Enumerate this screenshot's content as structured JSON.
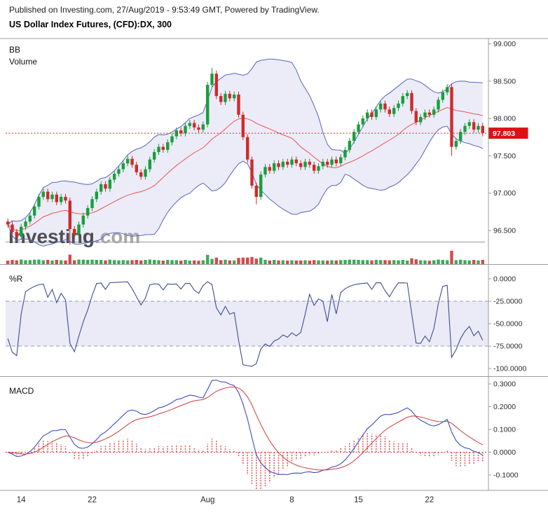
{
  "header": {
    "published_line": "Published on Investing.com, 27/Aug/2019 - 9:53:49 GMT, Powered by TradingView.",
    "symbol_title": "US Dollar Index Futures, (CFD):DX, 300"
  },
  "legends": {
    "main_bb": "BB",
    "main_volume": "Volume",
    "wpr": "%R",
    "macd": "MACD"
  },
  "watermark": {
    "bold": "Investing",
    "light": ".com"
  },
  "colors": {
    "up": "#1a9e3c",
    "down": "#d02a2a",
    "bb_fill": "rgba(101,110,199,0.13)",
    "bb_outer": "#5a64c0",
    "bb_mid": "#ef5350",
    "last_price_bg": "#dd1016",
    "last_price_line": "#e02020",
    "wpr_line": "#3f4c94",
    "wpr_band_fill": "rgba(109,116,190,0.14)",
    "wpr_dash": "#9097bd",
    "macd_line": "#3d4db7",
    "macd_signal": "#d23b3b",
    "macd_hist": "#e05c5c",
    "axis_text": "#2a2a2a",
    "separator": "#9d9d9d",
    "watermark_main": "#4f4f4f",
    "watermark_light": "#a7a7a7",
    "watermark_line": "#b5b5b5"
  },
  "time_axis": {
    "labels": [
      "14",
      "22",
      "Aug",
      "8",
      "15",
      "22"
    ],
    "bar_positions": [
      3,
      19,
      45,
      64,
      79,
      95
    ]
  },
  "chart_data": [
    {
      "type": "candlestick",
      "title": "US Dollar Index Futures, (CFD):DX, 300",
      "interval": "300",
      "overlays": [
        "BB",
        "Volume"
      ],
      "ylim": [
        96.05,
        99.07
      ],
      "yticks": [
        99.0,
        98.5,
        98.0,
        97.5,
        97.0,
        96.5
      ],
      "ytick_labels": [
        "99.000",
        "98.500",
        "98.000",
        "97.500",
        "97.000",
        "96.500"
      ],
      "last_price": 97.803,
      "last_price_label": "97.803",
      "candles": [
        [
          96.62,
          96.66,
          96.54,
          96.58
        ],
        [
          96.58,
          96.62,
          96.44,
          96.48
        ],
        [
          96.48,
          96.52,
          96.38,
          96.42
        ],
        [
          96.42,
          96.59,
          96.38,
          96.55
        ],
        [
          96.55,
          96.66,
          96.51,
          96.62
        ],
        [
          96.62,
          96.74,
          96.58,
          96.7
        ],
        [
          96.7,
          96.86,
          96.66,
          96.82
        ],
        [
          96.82,
          96.99,
          96.78,
          96.95
        ],
        [
          96.95,
          97.06,
          96.91,
          97.02
        ],
        [
          97.02,
          97.06,
          96.88,
          96.92
        ],
        [
          96.92,
          97.02,
          96.88,
          96.98
        ],
        [
          96.98,
          97.02,
          96.84,
          96.88
        ],
        [
          96.88,
          96.99,
          96.84,
          96.95
        ],
        [
          96.95,
          96.99,
          96.86,
          96.9
        ],
        [
          96.9,
          96.94,
          96.31,
          96.52
        ],
        [
          96.52,
          96.56,
          96.41,
          96.45
        ],
        [
          96.45,
          96.62,
          96.41,
          96.58
        ],
        [
          96.58,
          96.74,
          96.54,
          96.7
        ],
        [
          96.7,
          96.84,
          96.66,
          96.8
        ],
        [
          96.8,
          96.96,
          96.76,
          96.92
        ],
        [
          96.92,
          97.06,
          96.88,
          97.02
        ],
        [
          97.02,
          97.16,
          96.98,
          97.12
        ],
        [
          97.12,
          97.16,
          97.02,
          97.06
        ],
        [
          97.06,
          97.22,
          97.02,
          97.18
        ],
        [
          97.18,
          97.3,
          97.14,
          97.26
        ],
        [
          97.26,
          97.36,
          97.22,
          97.32
        ],
        [
          97.32,
          97.44,
          97.28,
          97.4
        ],
        [
          97.4,
          97.5,
          97.36,
          97.46
        ],
        [
          97.46,
          97.5,
          97.34,
          97.38
        ],
        [
          97.38,
          97.42,
          97.24,
          97.28
        ],
        [
          97.28,
          97.32,
          97.18,
          97.22
        ],
        [
          97.22,
          97.36,
          97.18,
          97.32
        ],
        [
          97.32,
          97.49,
          97.28,
          97.45
        ],
        [
          97.45,
          97.59,
          97.41,
          97.55
        ],
        [
          97.55,
          97.66,
          97.51,
          97.62
        ],
        [
          97.62,
          97.66,
          97.54,
          97.58
        ],
        [
          97.58,
          97.72,
          97.54,
          97.68
        ],
        [
          97.68,
          97.8,
          97.64,
          97.76
        ],
        [
          97.76,
          97.88,
          97.72,
          97.84
        ],
        [
          97.84,
          97.88,
          97.76,
          97.8
        ],
        [
          97.8,
          97.94,
          97.76,
          97.9
        ],
        [
          97.9,
          97.98,
          97.86,
          97.94
        ],
        [
          97.94,
          97.98,
          97.84,
          97.88
        ],
        [
          97.88,
          97.92,
          97.81,
          97.85
        ],
        [
          97.85,
          97.96,
          97.81,
          97.92
        ],
        [
          97.92,
          98.49,
          97.88,
          98.45
        ],
        [
          98.45,
          98.68,
          98.41,
          98.6
        ],
        [
          98.6,
          98.64,
          98.26,
          98.3
        ],
        [
          98.3,
          98.34,
          98.18,
          98.22
        ],
        [
          98.22,
          98.37,
          98.18,
          98.33
        ],
        [
          98.33,
          98.37,
          98.23,
          98.27
        ],
        [
          98.27,
          98.36,
          98.23,
          98.32
        ],
        [
          98.32,
          98.36,
          98.01,
          98.05
        ],
        [
          98.05,
          98.09,
          97.71,
          97.75
        ],
        [
          97.75,
          97.79,
          97.41,
          97.45
        ],
        [
          97.45,
          97.49,
          97.06,
          97.1
        ],
        [
          97.1,
          97.14,
          96.85,
          96.95
        ],
        [
          96.95,
          97.29,
          96.91,
          97.25
        ],
        [
          97.25,
          97.39,
          97.21,
          97.35
        ],
        [
          97.35,
          97.39,
          97.26,
          97.3
        ],
        [
          97.3,
          97.44,
          97.26,
          97.4
        ],
        [
          97.4,
          97.44,
          97.31,
          97.35
        ],
        [
          97.35,
          97.46,
          97.31,
          97.42
        ],
        [
          97.42,
          97.46,
          97.34,
          97.38
        ],
        [
          97.38,
          97.49,
          97.34,
          97.45
        ],
        [
          97.45,
          97.49,
          97.36,
          97.4
        ],
        [
          97.4,
          97.44,
          97.31,
          97.35
        ],
        [
          97.35,
          97.46,
          97.31,
          97.42
        ],
        [
          97.42,
          97.46,
          97.34,
          97.38
        ],
        [
          97.38,
          97.42,
          97.26,
          97.3
        ],
        [
          97.3,
          97.4,
          97.26,
          97.36
        ],
        [
          97.36,
          97.46,
          97.32,
          97.42
        ],
        [
          97.42,
          97.46,
          97.34,
          97.38
        ],
        [
          97.38,
          97.49,
          97.34,
          97.45
        ],
        [
          97.45,
          97.49,
          97.36,
          97.4
        ],
        [
          97.4,
          97.52,
          97.36,
          97.48
        ],
        [
          97.48,
          97.62,
          97.44,
          97.58
        ],
        [
          97.58,
          97.74,
          97.54,
          97.7
        ],
        [
          97.7,
          97.86,
          97.66,
          97.82
        ],
        [
          97.82,
          97.96,
          97.78,
          97.92
        ],
        [
          97.92,
          98.04,
          97.88,
          98.0
        ],
        [
          98.0,
          98.12,
          97.96,
          98.08
        ],
        [
          98.08,
          98.12,
          97.98,
          98.02
        ],
        [
          98.02,
          98.16,
          97.98,
          98.12
        ],
        [
          98.12,
          98.24,
          98.08,
          98.2
        ],
        [
          98.2,
          98.24,
          98.08,
          98.12
        ],
        [
          98.12,
          98.16,
          98.02,
          98.06
        ],
        [
          98.06,
          98.18,
          98.02,
          98.14
        ],
        [
          98.14,
          98.24,
          98.1,
          98.2
        ],
        [
          98.2,
          98.34,
          98.16,
          98.3
        ],
        [
          98.3,
          98.38,
          98.26,
          98.34
        ],
        [
          98.34,
          98.38,
          98.06,
          98.1
        ],
        [
          98.1,
          98.14,
          97.91,
          97.95
        ],
        [
          97.95,
          98.06,
          97.91,
          98.02
        ],
        [
          98.02,
          98.12,
          97.98,
          98.08
        ],
        [
          98.08,
          98.12,
          98.01,
          98.05
        ],
        [
          98.05,
          98.16,
          98.01,
          98.12
        ],
        [
          98.12,
          98.29,
          98.08,
          98.25
        ],
        [
          98.25,
          98.39,
          98.21,
          98.35
        ],
        [
          98.35,
          98.46,
          98.31,
          98.42
        ],
        [
          98.42,
          98.46,
          97.5,
          97.62
        ],
        [
          97.62,
          97.74,
          97.58,
          97.7
        ],
        [
          97.7,
          97.86,
          97.66,
          97.82
        ],
        [
          97.82,
          97.94,
          97.78,
          97.9
        ],
        [
          97.9,
          97.99,
          97.86,
          97.95
        ],
        [
          97.95,
          97.99,
          97.81,
          97.85
        ],
        [
          97.85,
          97.94,
          97.81,
          97.9
        ],
        [
          97.9,
          97.94,
          97.76,
          97.803
        ]
      ]
    },
    {
      "type": "line",
      "indicator": "%R",
      "ylim": [
        -100,
        0
      ],
      "yticks": [
        0,
        -25,
        -50,
        -75,
        -100
      ],
      "ytick_labels": [
        "0.0000",
        "-25.0000",
        "-50.0000",
        "-75.0000",
        "-100.0000"
      ],
      "band": [
        -25,
        -75
      ],
      "derived_from": "chart_data[0].candles"
    },
    {
      "type": "macd",
      "indicator": "MACD",
      "ylim": [
        -0.135,
        0.315
      ],
      "yticks": [
        0.3,
        0.2,
        0.1,
        0.0,
        -0.1
      ],
      "ytick_labels": [
        "0.3000",
        "0.2000",
        "0.1000",
        "0.0000",
        "-0.1000"
      ],
      "derived_from": "chart_data[0].candles"
    }
  ]
}
